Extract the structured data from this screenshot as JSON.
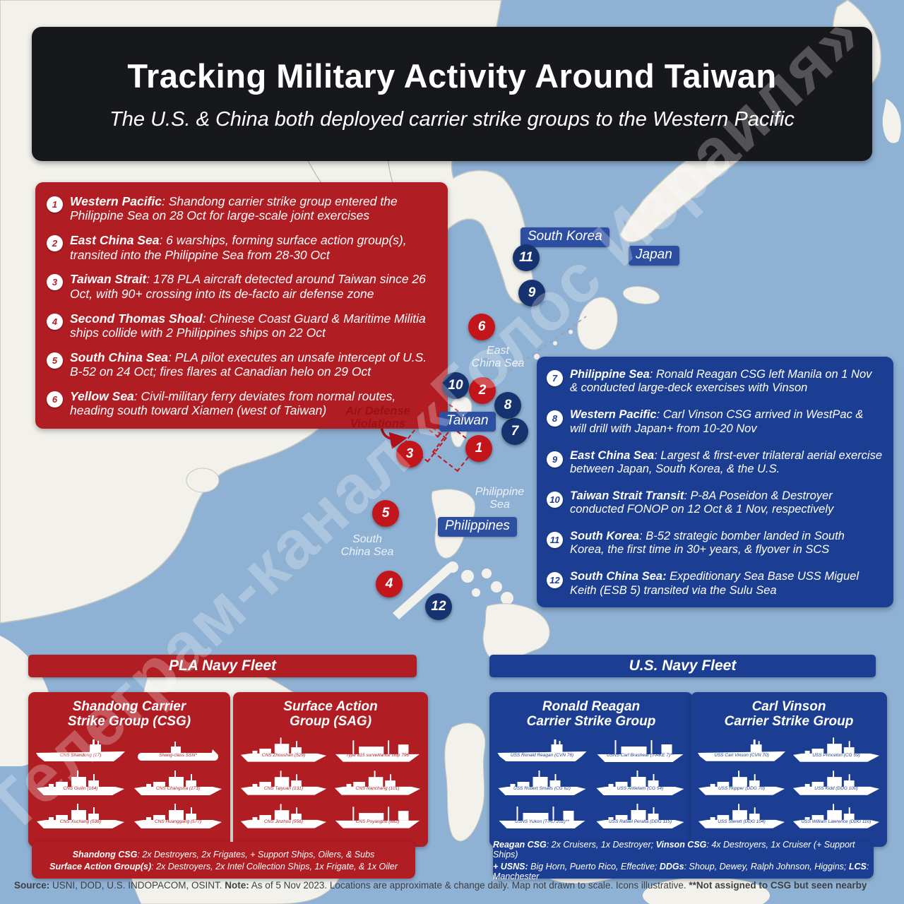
{
  "title": {
    "heading": "Tracking Military Activity Around Taiwan",
    "subheading": "The U.S. & China both deployed carrier strike groups to the Western Pacific"
  },
  "events_pla": {
    "items": [
      {
        "num": "1",
        "lead": "Western Pacific",
        "rest": ": Shandong carrier strike group entered the Philippine Sea on 28 Oct for large-scale joint exercises"
      },
      {
        "num": "2",
        "lead": "East China Sea",
        "rest": ": 6 warships, forming surface action group(s), transited into the Philippine Sea from 28-30 Oct"
      },
      {
        "num": "3",
        "lead": "Taiwan Strait",
        "rest": ": 178 PLA aircraft detected around Taiwan since 26 Oct, with 90+ crossing into its de-facto air defense zone"
      },
      {
        "num": "4",
        "lead": "Second Thomas Shoal",
        "rest": ": Chinese Coast Guard & Maritime Militia ships collide with 2 Philippines ships on 22 Oct"
      },
      {
        "num": "5",
        "lead": "South China Sea",
        "rest": ": PLA pilot executes an unsafe intercept of U.S. B-52 on 24 Oct; fires flares at Canadian helo on 29 Oct"
      },
      {
        "num": "6",
        "lead": "Yellow Sea",
        "rest": ": Civil-military ferry deviates from normal routes, heading south toward Xiamen (west of Taiwan)"
      }
    ]
  },
  "events_us": {
    "items": [
      {
        "num": "7",
        "lead": "Philippine Sea",
        "rest": ": Ronald Reagan CSG left Manila on 1 Nov & conducted large-deck exercises with Vinson"
      },
      {
        "num": "8",
        "lead": "Western Pacific",
        "rest": ": Carl Vinson CSG arrived in WestPac & will drill with Japan+ from 10-20 Nov"
      },
      {
        "num": "9",
        "lead": "East China Sea",
        "rest": ": Largest & first-ever trilateral aerial exercise between Japan, South Korea, & the U.S."
      },
      {
        "num": "10",
        "lead": "Taiwan Strait Transit",
        "rest": ": P-8A Poseidon & Destroyer conducted FONOP on 12 Oct & 1 Nov, respectively"
      },
      {
        "num": "11",
        "lead": "South Korea",
        "rest": ": B-52 strategic bomber landed in South Korea, the first time in 30+ years, & flyover in SCS"
      },
      {
        "num": "12",
        "lead": "South China Sea:",
        "rest": " Expeditionary Sea Base USS Miguel Keith (ESB 5) transited via the Sulu Sea"
      }
    ]
  },
  "map": {
    "labels": {
      "south_korea": "South Korea",
      "japan": "Japan",
      "taiwan": "Taiwan",
      "philippines": "Philippines"
    },
    "sea_labels": {
      "east_china_sea": "East\nChina Sea",
      "philippine_sea": "Philippine\nSea",
      "south_china_sea": "South\nChina Sea"
    },
    "air_defense": "Air Defense\nViolations",
    "markers": [
      {
        "n": "1"
      },
      {
        "n": "2"
      },
      {
        "n": "3"
      },
      {
        "n": "4"
      },
      {
        "n": "5"
      },
      {
        "n": "6"
      },
      {
        "n": "7"
      },
      {
        "n": "8"
      },
      {
        "n": "9"
      },
      {
        "n": "10"
      },
      {
        "n": "11"
      },
      {
        "n": "12"
      }
    ],
    "watermark": "Телеграм-канал «Голос Израиля»"
  },
  "fleets": {
    "pla": {
      "header": "PLA Navy Fleet",
      "groups": [
        {
          "title": "Shandong Carrier\nStrike Group (CSG)",
          "ships": [
            "CNS Shandong (17)",
            "Shang-class SSN*",
            "CNS Guilin (164)",
            "CNS Changsha (173)",
            "CNS Xuchang (536)",
            "CNS Huanggang (577)"
          ]
        },
        {
          "title": "Surface Action\nGroup (SAG)",
          "ships": [
            "CNS Zhoushan (529)",
            "Type 815 surveillance ship 796",
            "CNS Taiyuan (131)",
            "CNS Nanchang (101)",
            "CNS Jinzhou (556)",
            "CNS Poyanghu (882)"
          ]
        }
      ],
      "footnote_lines": [
        [
          {
            "t": "Shandong CSG",
            "b": true
          },
          {
            "t": ": 2x Destroyers, 2x Frigates, + Support Ships, Oilers, & Subs",
            "b": false
          }
        ],
        [
          {
            "t": "Surface Action Group(s)",
            "b": true
          },
          {
            "t": ": 2x Destroyers, 2x Intel Collection Ships, 1x Frigate, & 1x Oiler",
            "b": false
          }
        ]
      ]
    },
    "us": {
      "header": "U.S. Navy Fleet",
      "groups": [
        {
          "title": "Ronald Reagan\nCarrier Strike Group",
          "ships": [
            "USS Ronald Reagan (CVN 76)",
            "USNS Carl Brashear (T-AKE 7)**",
            "USS Robert Smalls (CG 62)",
            "USS Antietam (CG 54)",
            "USNS Yukon (T-AO 202)**",
            "USS Rafael Peralta (DDG 115)"
          ]
        },
        {
          "title": "Carl Vinson\nCarrier Strike Group",
          "ships": [
            "USS Carl Vinson (CVN 70)",
            "USS Princeton (CG 59)",
            "USS Hopper (DDG 70)",
            "USS Kidd (DDG 100)",
            "USS Sterett (DDG 104)",
            "USS William Lawrence (DDG 110)"
          ]
        }
      ],
      "footnote_lines": [
        [
          {
            "t": "Reagan CSG",
            "b": true
          },
          {
            "t": ": 2x Cruisers, 1x Destroyer; ",
            "b": false
          },
          {
            "t": "Vinson CSG",
            "b": true
          },
          {
            "t": ": 4x Destroyers, 1x Cruiser (+ Support Ships)",
            "b": false
          }
        ],
        [
          {
            "t": "+ USNS:",
            "b": true
          },
          {
            "t": " Big Horn, Puerto Rico, Effective; ",
            "b": false
          },
          {
            "t": "DDGs",
            "b": true
          },
          {
            "t": ": Shoup, Dewey, Ralph Johnson, Higgins; ",
            "b": false
          },
          {
            "t": "LCS",
            "b": true
          },
          {
            "t": ": Manchester",
            "b": false
          }
        ]
      ]
    }
  },
  "source": {
    "segments": [
      {
        "t": "Source:",
        "b": true
      },
      {
        "t": " USNI, DOD, U.S. INDOPACOM, OSINT. ",
        "b": false
      },
      {
        "t": "Note:",
        "b": true
      },
      {
        "t": " As of 5 Nov 2023. Locations are approximate & change daily. Map not drawn to scale. Icons illustrative. ",
        "b": false
      },
      {
        "t": "**Not assigned to CSG but seen nearby",
        "b": true
      }
    ]
  },
  "colors": {
    "ocean": "#8fb1d4",
    "land": "#f2f1ec",
    "panel_red": "#b01d23",
    "panel_blue": "#1c3e92",
    "marker_red": "#c3161c",
    "marker_blue": "#16336f",
    "title_bg": "#17181c"
  }
}
